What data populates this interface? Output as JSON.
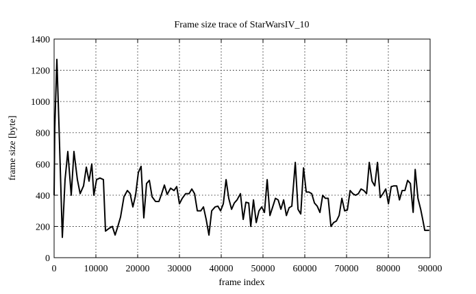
{
  "chart_data": {
    "type": "line",
    "title": "Frame size trace of StarWarsIV_10",
    "xlabel": "frame index",
    "ylabel": "frame size [byte]",
    "color": "#000000",
    "grid": true,
    "xlim": [
      0,
      90000
    ],
    "ylim": [
      0,
      1400
    ],
    "xticks": [
      0,
      10000,
      20000,
      30000,
      40000,
      50000,
      60000,
      70000,
      80000,
      90000
    ],
    "yticks": [
      0,
      200,
      400,
      600,
      800,
      1000,
      1200,
      1400
    ],
    "x": [
      0,
      160,
      660,
      1150,
      1970,
      2620,
      3280,
      4100,
      4750,
      5570,
      6230,
      7050,
      7710,
      8360,
      9020,
      9510,
      10160,
      10980,
      11800,
      12300,
      13280,
      13940,
      14600,
      15250,
      15900,
      16720,
      17540,
      18200,
      18850,
      19500,
      20160,
      20820,
      21470,
      22130,
      22800,
      23450,
      24270,
      25090,
      25750,
      26400,
      27060,
      27880,
      28700,
      29350,
      30000,
      30670,
      31490,
      32310,
      32960,
      33620,
      34280,
      35100,
      35750,
      36400,
      37060,
      37720,
      38540,
      39200,
      39850,
      40500,
      41160,
      41800,
      42480,
      43130,
      43790,
      44600,
      45260,
      45900,
      46580,
      47070,
      47720,
      48380,
      49040,
      49690,
      50350,
      51000,
      51660,
      52320,
      52970,
      53630,
      54280,
      54940,
      55600,
      56250,
      56900,
      57730,
      58380,
      59040,
      59700,
      60350,
      61000,
      61660,
      62320,
      62980,
      63630,
      64290,
      64940,
      65600,
      66260,
      66910,
      67570,
      68220,
      68880,
      69540,
      70190,
      70850,
      71500,
      72160,
      72820,
      73470,
      74130,
      74790,
      75440,
      76100,
      76750,
      77400,
      78060,
      78720,
      79380,
      80030,
      80690,
      81340,
      82000,
      82660,
      83310,
      83970,
      84620,
      85280,
      85940,
      86430,
      87090,
      87740,
      88230,
      88720,
      89800
    ],
    "values": [
      400,
      830,
      1270,
      860,
      130,
      500,
      680,
      400,
      680,
      500,
      410,
      460,
      580,
      490,
      600,
      400,
      500,
      510,
      500,
      170,
      190,
      200,
      145,
      200,
      260,
      390,
      430,
      410,
      325,
      400,
      545,
      585,
      255,
      475,
      495,
      390,
      360,
      360,
      410,
      465,
      405,
      445,
      430,
      455,
      345,
      380,
      410,
      410,
      440,
      410,
      300,
      300,
      325,
      245,
      145,
      300,
      325,
      330,
      300,
      345,
      500,
      380,
      310,
      350,
      370,
      410,
      245,
      355,
      350,
      200,
      370,
      225,
      300,
      325,
      290,
      500,
      270,
      325,
      380,
      370,
      310,
      370,
      270,
      320,
      330,
      610,
      310,
      280,
      575,
      420,
      420,
      410,
      350,
      330,
      290,
      400,
      380,
      380,
      200,
      225,
      235,
      270,
      380,
      300,
      305,
      430,
      410,
      400,
      410,
      440,
      430,
      410,
      610,
      490,
      460,
      610,
      385,
      410,
      440,
      345,
      455,
      460,
      460,
      370,
      430,
      430,
      495,
      475,
      290,
      565,
      380,
      310,
      245,
      175,
      175
    ]
  }
}
